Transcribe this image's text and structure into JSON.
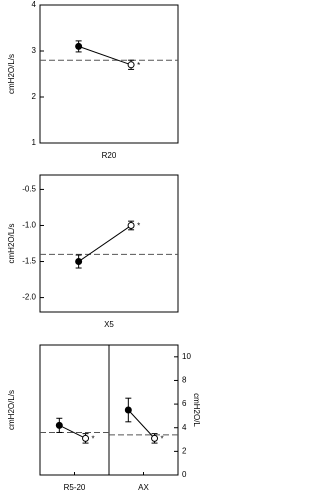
{
  "chart_data": [
    {
      "type": "line",
      "x_label": "R20",
      "y_label": "cmH2O/L/s",
      "ylim": [
        1,
        4
      ],
      "yticks": [
        1,
        2,
        3,
        4
      ],
      "series": [
        {
          "color": "#000000",
          "values": [
            3.1,
            2.7
          ],
          "errors": [
            0.12,
            0.1
          ],
          "markers": [
            "filled",
            "open"
          ],
          "reference": 2.8
        }
      ],
      "annotations": [
        "*"
      ]
    },
    {
      "type": "line",
      "x_label": "X5",
      "y_label": "cmH2O/L/s",
      "ylim": [
        -2.2,
        -0.3
      ],
      "yticks": [
        {
          "value": -2,
          "label": "-2.0"
        },
        -1.5,
        {
          "value": -1,
          "label": "-1.0"
        },
        -0.5
      ],
      "series": [
        {
          "color": "#000000",
          "values": [
            -1.5,
            -1.0
          ],
          "errors": [
            0.09,
            0.06
          ],
          "markers": [
            "filled",
            "open"
          ],
          "reference": -1.4
        }
      ],
      "annotations": [
        "*"
      ]
    },
    {
      "type": "line",
      "categories": [
        "R5-20",
        "AX"
      ],
      "y_label": "cmH2O/L/s",
      "y2_label": "cmH2O/L",
      "ylim": [
        0,
        1.1
      ],
      "y2lim": [
        0,
        11
      ],
      "y2ticks": [
        0,
        2,
        4,
        6,
        8,
        10
      ],
      "series": [
        {
          "color": "#000000",
          "values": [
            0.42,
            0.31
          ],
          "errors": [
            0.06,
            0.04
          ],
          "markers": [
            "filled",
            "open"
          ],
          "reference": 0.36
        },
        {
          "color": "#000000",
          "values": [
            5.5,
            3.1
          ],
          "errors": [
            1.0,
            0.4
          ],
          "markers": [
            "filled",
            "open"
          ],
          "reference": 3.4,
          "axis": "y2"
        }
      ],
      "annotations": [
        "*",
        "*"
      ]
    }
  ]
}
